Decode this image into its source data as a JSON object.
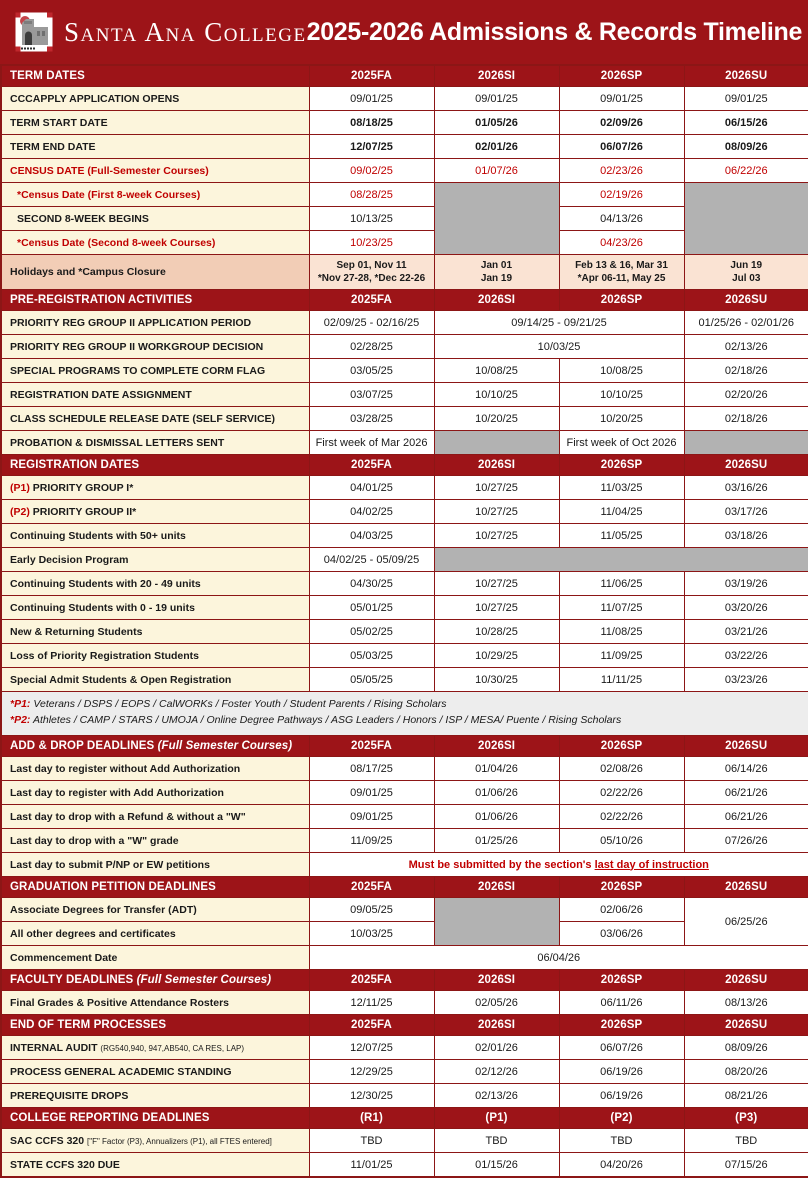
{
  "header": {
    "college_name": "Santa Ana College",
    "title": "2025-2026 Admissions & Records Timeline",
    "logo": "mission-building-logo"
  },
  "colors": {
    "dark_red": "#9D1418",
    "border_maroon": "#8C1616",
    "label_cream": "#FCF5DC",
    "blocked_gray": "#B2B2B2",
    "holiday_label_bg": "#F2CDB6",
    "holiday_cell_bg": "#FAE3D3",
    "red_text": "#C00000",
    "footnote_bg": "#EDEDED"
  },
  "sections": [
    {
      "name": "TERM DATES",
      "cols": [
        "2025FA",
        "2026SI",
        "2026SP",
        "2026SU"
      ],
      "rows": [
        {
          "label": "CCCAPPLY APPLICATION OPENS",
          "cells": [
            {
              "t": "09/01/25"
            },
            {
              "t": "09/01/25"
            },
            {
              "t": "09/01/25"
            },
            {
              "t": "09/01/25"
            }
          ]
        },
        {
          "label": "TERM START DATE",
          "cells": [
            {
              "t": "08/18/25",
              "cls": "bd"
            },
            {
              "t": "01/05/26",
              "cls": "bd"
            },
            {
              "t": "02/09/26",
              "cls": "bd"
            },
            {
              "t": "06/15/26",
              "cls": "bd"
            }
          ]
        },
        {
          "label": "TERM END DATE",
          "cells": [
            {
              "t": "12/07/25",
              "cls": "bd"
            },
            {
              "t": "02/01/26",
              "cls": "bd"
            },
            {
              "t": "06/07/26",
              "cls": "bd"
            },
            {
              "t": "08/09/26",
              "cls": "bd"
            }
          ]
        },
        {
          "label": "CENSUS DATE (Full-Semester Courses)",
          "lcls": "red",
          "cells": [
            {
              "t": "09/02/25",
              "cls": "red"
            },
            {
              "t": "01/07/26",
              "cls": "red"
            },
            {
              "t": "02/23/26",
              "cls": "red"
            },
            {
              "t": "06/22/26",
              "cls": "red"
            }
          ]
        },
        {
          "label": "*Census Date (First 8-week Courses)",
          "lcls": "red ind",
          "cells": [
            {
              "t": "08/28/25",
              "cls": "red"
            },
            {
              "gray": true,
              "rs": 3
            },
            {
              "t": "02/19/26",
              "cls": "red"
            },
            {
              "gray": true,
              "rs": 3
            }
          ]
        },
        {
          "label": "SECOND 8-WEEK BEGINS",
          "lcls": "ind",
          "cells": [
            {
              "t": "10/13/25"
            },
            {
              "t": "04/13/26"
            }
          ]
        },
        {
          "label": "*Census Date (Second 8-week Courses)",
          "lcls": "red ind",
          "cells": [
            {
              "t": "10/23/25",
              "cls": "red"
            },
            {
              "t": "04/23/26",
              "cls": "red"
            }
          ]
        },
        {
          "label": "Holidays and *Campus Closure",
          "h": true,
          "cells": [
            {
              "lines": [
                "Sep 01, Nov 11",
                "*Nov 27-28, *Dec 22-26"
              ]
            },
            {
              "lines": [
                "Jan 01",
                "Jan 19"
              ]
            },
            {
              "lines": [
                "Feb 13 & 16, Mar 31",
                "*Apr 06-11, May 25"
              ]
            },
            {
              "lines": [
                "Jun 19",
                "Jul 03"
              ]
            }
          ]
        }
      ]
    },
    {
      "name": "PRE-REGISTRATION ACTIVITIES",
      "cols": [
        "2025FA",
        "2026SI",
        "2026SP",
        "2026SU"
      ],
      "rows": [
        {
          "label": "PRIORITY REG GROUP II APPLICATION PERIOD",
          "cells": [
            {
              "t": "02/09/25 - 02/16/25"
            },
            {
              "t": "09/14/25 - 09/21/25",
              "span": 2
            },
            {
              "t": "01/25/26 - 02/01/26"
            }
          ]
        },
        {
          "label": "PRIORITY REG GROUP II WORKGROUP DECISION",
          "cells": [
            {
              "t": "02/28/25"
            },
            {
              "t": "10/03/25",
              "span": 2
            },
            {
              "t": "02/13/26"
            }
          ]
        },
        {
          "label": "SPECIAL PROGRAMS TO COMPLETE CORM FLAG",
          "cells": [
            {
              "t": "03/05/25"
            },
            {
              "t": "10/08/25"
            },
            {
              "t": "10/08/25"
            },
            {
              "t": "02/18/26"
            }
          ]
        },
        {
          "label": "REGISTRATION DATE ASSIGNMENT",
          "cells": [
            {
              "t": "03/07/25"
            },
            {
              "t": "10/10/25"
            },
            {
              "t": "10/10/25"
            },
            {
              "t": "02/20/26"
            }
          ]
        },
        {
          "label": "CLASS SCHEDULE RELEASE DATE (SELF SERVICE)",
          "cells": [
            {
              "t": "03/28/25"
            },
            {
              "t": "10/20/25"
            },
            {
              "t": "10/20/25"
            },
            {
              "t": "02/18/26"
            }
          ]
        },
        {
          "label": "PROBATION & DISMISSAL LETTERS SENT",
          "cells": [
            {
              "t": "First week of Mar 2026"
            },
            {
              "gray": true
            },
            {
              "t": "First week of Oct 2026"
            },
            {
              "gray": true
            }
          ]
        }
      ]
    },
    {
      "name": "REGISTRATION DATES",
      "cols": [
        "2025FA",
        "2026SI",
        "2026SP",
        "2026SU"
      ],
      "rows": [
        {
          "prefix": "(P1)",
          "label": "PRIORITY GROUP I*",
          "cells": [
            {
              "t": "04/01/25"
            },
            {
              "t": "10/27/25"
            },
            {
              "t": "11/03/25"
            },
            {
              "t": "03/16/26"
            }
          ]
        },
        {
          "prefix": "(P2)",
          "label": "PRIORITY GROUP II*",
          "cells": [
            {
              "t": "04/02/25"
            },
            {
              "t": "10/27/25"
            },
            {
              "t": "11/04/25"
            },
            {
              "t": "03/17/26"
            }
          ]
        },
        {
          "label": "Continuing Students with 50+ units",
          "cells": [
            {
              "t": "04/03/25"
            },
            {
              "t": "10/27/25"
            },
            {
              "t": "11/05/25"
            },
            {
              "t": "03/18/26"
            }
          ]
        },
        {
          "label": "Early Decision Program",
          "cells": [
            {
              "t": "04/02/25 - 05/09/25"
            },
            {
              "gray": true,
              "span": 3
            }
          ]
        },
        {
          "label": "Continuing Students with 20 - 49 units",
          "cells": [
            {
              "t": "04/30/25"
            },
            {
              "t": "10/27/25"
            },
            {
              "t": "11/06/25"
            },
            {
              "t": "03/19/26"
            }
          ]
        },
        {
          "label": "Continuing Students with 0 - 19 units",
          "cells": [
            {
              "t": "05/01/25"
            },
            {
              "t": "10/27/25"
            },
            {
              "t": "11/07/25"
            },
            {
              "t": "03/20/26"
            }
          ]
        },
        {
          "label": "New & Returning Students",
          "cells": [
            {
              "t": "05/02/25"
            },
            {
              "t": "10/28/25"
            },
            {
              "t": "11/08/25"
            },
            {
              "t": "03/21/26"
            }
          ]
        },
        {
          "label": "Loss of Priority Registration Students",
          "cells": [
            {
              "t": "05/03/25"
            },
            {
              "t": "10/29/25"
            },
            {
              "t": "11/09/25"
            },
            {
              "t": "03/22/26"
            }
          ]
        },
        {
          "label": "Special Admit Students & Open Registration",
          "cells": [
            {
              "t": "05/05/25"
            },
            {
              "t": "10/30/25"
            },
            {
              "t": "11/11/25"
            },
            {
              "t": "03/23/26"
            }
          ]
        }
      ]
    },
    {
      "type": "footnote",
      "items": [
        {
          "label": "*P1:",
          "text": "Veterans / DSPS / EOPS / CalWORKs / Foster Youth / Student Parents / Rising Scholars"
        },
        {
          "label": "*P2:",
          "text": "Athletes / CAMP / STARS / UMOJA / Online Degree Pathways / ASG Leaders / Honors / ISP / MESA/ Puente / Rising Scholars"
        }
      ]
    },
    {
      "name": "ADD & DROP DEADLINES",
      "suffix": "(Full Semester Courses)",
      "cols": [
        "2025FA",
        "2026SI",
        "2026SP",
        "2026SU"
      ],
      "rows": [
        {
          "label": "Last day to register without Add Authorization",
          "cells": [
            {
              "t": "08/17/25"
            },
            {
              "t": "01/04/26"
            },
            {
              "t": "02/08/26"
            },
            {
              "t": "06/14/26"
            }
          ]
        },
        {
          "label": "Last day to register with Add Authorization",
          "cells": [
            {
              "t": "09/01/25"
            },
            {
              "t": "01/06/26"
            },
            {
              "t": "02/22/26"
            },
            {
              "t": "06/21/26"
            }
          ]
        },
        {
          "label": "Last day to drop with a Refund & without a \"W\"",
          "cells": [
            {
              "t": "09/01/25"
            },
            {
              "t": "01/06/26"
            },
            {
              "t": "02/22/26"
            },
            {
              "t": "06/21/26"
            }
          ]
        },
        {
          "label": "Last day to drop with a \"W\" grade",
          "cells": [
            {
              "t": "11/09/25"
            },
            {
              "t": "01/25/26"
            },
            {
              "t": "05/10/26"
            },
            {
              "t": "07/26/26"
            }
          ]
        },
        {
          "label": "Last day to submit P/NP or EW petitions",
          "cells": [
            {
              "t": "Must be submitted by the section's ",
              "u": "last day of instruction",
              "span": 4,
              "cls": "notice"
            }
          ]
        }
      ]
    },
    {
      "name": "GRADUATION PETITION DEADLINES",
      "cols": [
        "2025FA",
        "2026SI",
        "2026SP",
        "2026SU"
      ],
      "rows": [
        {
          "label": "Associate Degrees for Transfer (ADT)",
          "cells": [
            {
              "t": "09/05/25"
            },
            {
              "gray": true,
              "rs": 2
            },
            {
              "t": "02/06/26"
            },
            {
              "t": "06/25/26",
              "rs": 2
            }
          ]
        },
        {
          "label": "All other degrees and certificates",
          "cells": [
            {
              "t": "10/03/25"
            },
            {
              "t": "03/06/26"
            }
          ]
        },
        {
          "label": "Commencement Date",
          "cells": [
            {
              "t": "06/04/26",
              "span": 4
            }
          ]
        }
      ]
    },
    {
      "name": "FACULTY DEADLINES",
      "suffix": "(Full Semester Courses)",
      "cols": [
        "2025FA",
        "2026SI",
        "2026SP",
        "2026SU"
      ],
      "rows": [
        {
          "label": "Final Grades & Positive Attendance Rosters",
          "cells": [
            {
              "t": "12/11/25"
            },
            {
              "t": "02/05/26"
            },
            {
              "t": "06/11/26"
            },
            {
              "t": "08/13/26"
            }
          ]
        }
      ]
    },
    {
      "name": "END OF TERM PROCESSES",
      "cols": [
        "2025FA",
        "2026SI",
        "2026SP",
        "2026SU"
      ],
      "rows": [
        {
          "label": "INTERNAL AUDIT",
          "small": "(RG540,940, 947,AB540, CA RES, LAP)",
          "cells": [
            {
              "t": "12/07/25"
            },
            {
              "t": "02/01/26"
            },
            {
              "t": "06/07/26"
            },
            {
              "t": "08/09/26"
            }
          ]
        },
        {
          "label": "PROCESS GENERAL ACADEMIC STANDING",
          "cells": [
            {
              "t": "12/29/25"
            },
            {
              "t": "02/12/26"
            },
            {
              "t": "06/19/26"
            },
            {
              "t": "08/20/26"
            }
          ]
        },
        {
          "label": "PREREQUISITE DROPS",
          "cells": [
            {
              "t": "12/30/25"
            },
            {
              "t": "02/13/26"
            },
            {
              "t": "06/19/26"
            },
            {
              "t": "08/21/26"
            }
          ]
        }
      ]
    },
    {
      "name": "COLLEGE REPORTING DEADLINES",
      "cols": [
        "(R1)",
        "(P1)",
        "(P2)",
        "(P3)"
      ],
      "rows": [
        {
          "label": "SAC CCFS 320",
          "small": "[\"F\" Factor (P3), Annualizers (P1), all FTES entered]",
          "cells": [
            {
              "t": "TBD"
            },
            {
              "t": "TBD"
            },
            {
              "t": "TBD"
            },
            {
              "t": "TBD"
            }
          ]
        },
        {
          "label": "STATE CCFS 320 DUE",
          "cells": [
            {
              "t": "11/01/25"
            },
            {
              "t": "01/15/26"
            },
            {
              "t": "04/20/26"
            },
            {
              "t": "07/15/26"
            }
          ]
        }
      ]
    }
  ]
}
